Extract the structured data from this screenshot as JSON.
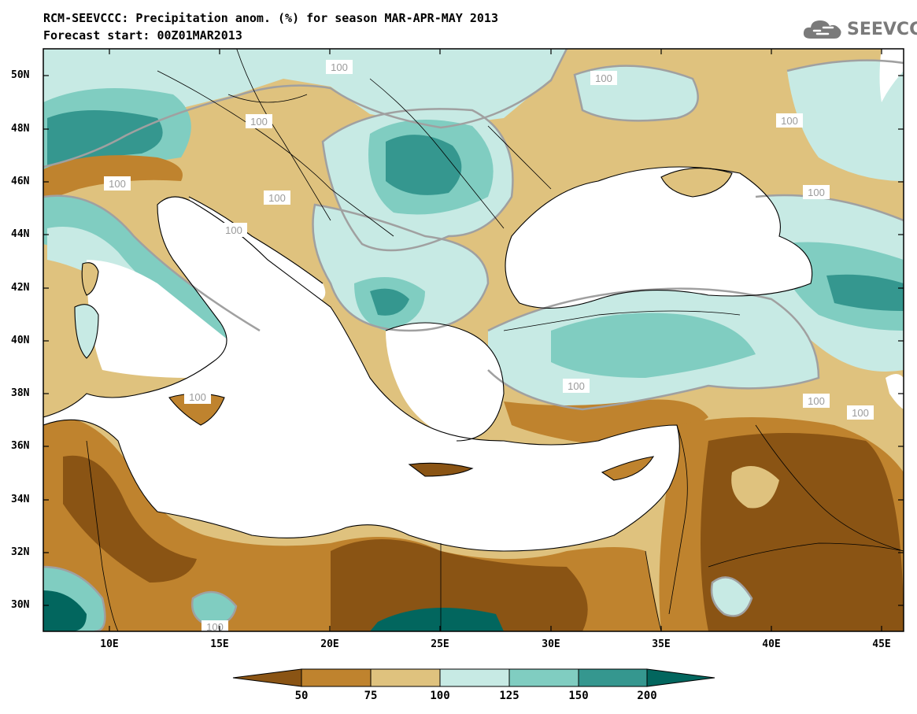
{
  "title_line1": "RCM-SEEVCCC: Precipitation anom. (%) for season MAR-APR-MAY 2013",
  "title_line2": "Forecast start: 00Z01MAR2013",
  "logo": {
    "text": "SEEVCCC",
    "icon": "cloud-logo-icon",
    "color": "#7a7a7a"
  },
  "map": {
    "lon_range": [
      7,
      46
    ],
    "lat_range": [
      29,
      51
    ],
    "lat_ticks": [
      "50N",
      "48N",
      "46N",
      "44N",
      "42N",
      "40N",
      "38N",
      "36N",
      "34N",
      "32N",
      "30N"
    ],
    "lon_ticks": [
      "10E",
      "15E",
      "20E",
      "25E",
      "30E",
      "35E",
      "40E",
      "45E"
    ],
    "contour_labels": [
      "100",
      "100",
      "100",
      "100",
      "100",
      "100",
      "100",
      "100",
      "100",
      "100",
      "100",
      "100",
      "100"
    ]
  },
  "colorbar": {
    "levels": [
      "50",
      "75",
      "100",
      "125",
      "150",
      "200"
    ],
    "colors": [
      "#8a5414",
      "#bf832e",
      "#dfc27e",
      "#c7eae4",
      "#80cdc1",
      "#35978f",
      "#02665e"
    ]
  }
}
